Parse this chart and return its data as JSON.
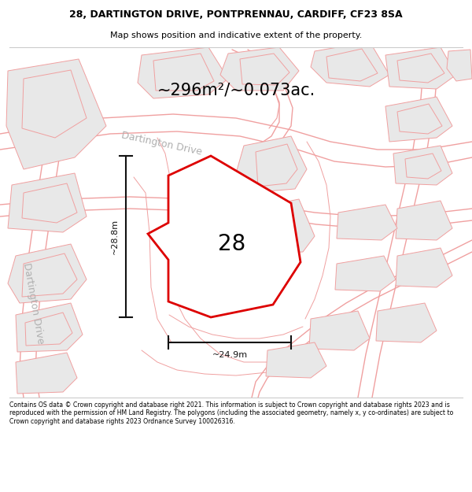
{
  "title_line1": "28, DARTINGTON DRIVE, PONTPRENNAU, CARDIFF, CF23 8SA",
  "title_line2": "Map shows position and indicative extent of the property.",
  "area_label": "~296m²/~0.073ac.",
  "number_label": "28",
  "dim_vertical": "~28.8m",
  "dim_horizontal": "~24.9m",
  "street_label1": "Dartington Drive",
  "street_label2": "Dartington Drive",
  "footer_text": "Contains OS data © Crown copyright and database right 2021. This information is subject to Crown copyright and database rights 2023 and is reproduced with the permission of HM Land Registry. The polygons (including the associated geometry, namely x, y co-ordinates) are subject to Crown copyright and database rights 2023 Ordnance Survey 100026316.",
  "map_bg": "#fafafa",
  "plot_fill": "#ffffff",
  "plot_stroke": "#dd0000",
  "road_line_color": "#f0a0a0",
  "building_fill": "#e8e8e8",
  "building_stroke": "#f0a0a0",
  "title_bg": "#ffffff",
  "footer_bg": "#ffffff",
  "dim_color": "#111111",
  "street_color": "#b0b0b0",
  "number_fontsize": 20,
  "area_fontsize": 15
}
